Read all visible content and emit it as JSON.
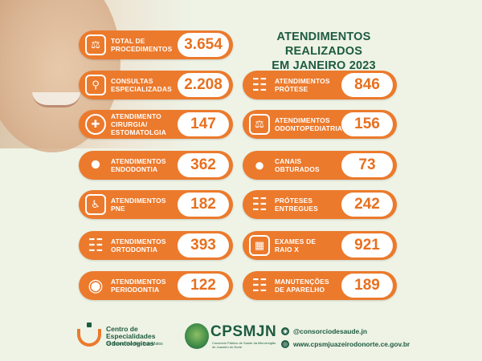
{
  "title": {
    "line1": "ATENDIMENTOS REALIZADOS",
    "line2": "EM JANEIRO 2023"
  },
  "stats": [
    {
      "label": "TOTAL DE\nPROCEDIMENTOS",
      "value": "3.654",
      "icon": "dental-chair-icon"
    },
    {
      "label": "CONSULTAS\nESPECIALIZADAS",
      "value": "2.208",
      "icon": "tooth-magnifier-icon"
    },
    {
      "label": "ATENDIMENTO\nCIRURGIA/\nESTOMATOLGIA",
      "value": "147",
      "icon": "tooth-surgery-icon"
    },
    {
      "label": "ATENDIMENTOS\nENDODONTIA",
      "value": "362",
      "icon": "tooth-root-icon"
    },
    {
      "label": "ATENDIMENTOS\nPNE",
      "value": "182",
      "icon": "wheelchair-chair-icon"
    },
    {
      "label": "ATENDIMENTOS\nORTODONTIA",
      "value": "393",
      "icon": "braces-icon"
    },
    {
      "label": "ATENDIMENTOS\nPERIODONTIA",
      "value": "122",
      "icon": "gum-tooth-icon"
    },
    {
      "label": "ATENDIMENTOS\nPRÓTESE",
      "value": "846",
      "icon": "denture-icon"
    },
    {
      "label": "ATENDIMENTOS\nODONTOPEDIATRIA",
      "value": "156",
      "icon": "pediatric-chair-icon"
    },
    {
      "label": "CANAIS\nOBTURADOS",
      "value": "73",
      "icon": "tooth-icon"
    },
    {
      "label": "PRÓTESES\nENTREGUES",
      "value": "242",
      "icon": "prosthesis-icon"
    },
    {
      "label": "EXAMES DE\nRAIO X",
      "value": "921",
      "icon": "xray-icon"
    },
    {
      "label": "MANUTENÇÕES\nDE APARELHO",
      "value": "189",
      "icon": "braces-maintenance-icon"
    }
  ],
  "footer": {
    "ceo_name": "Centro de Especialidades Odontologicas",
    "ceo_sub": "Dr. Tiziano Van Den Bruk Matos",
    "consortium_name": "CPSMJN",
    "consortium_sub": "Consórcio Público de Saúde da Microrregião de Juazeiro do Norte",
    "instagram": "@consorciodesaude.jn",
    "website": "www.cpsmjuazeirodonorte.ce.gov.br"
  },
  "colors": {
    "accent": "#ec7a2c",
    "brand_green": "#1e5b3f",
    "background": "#eef3e6"
  }
}
